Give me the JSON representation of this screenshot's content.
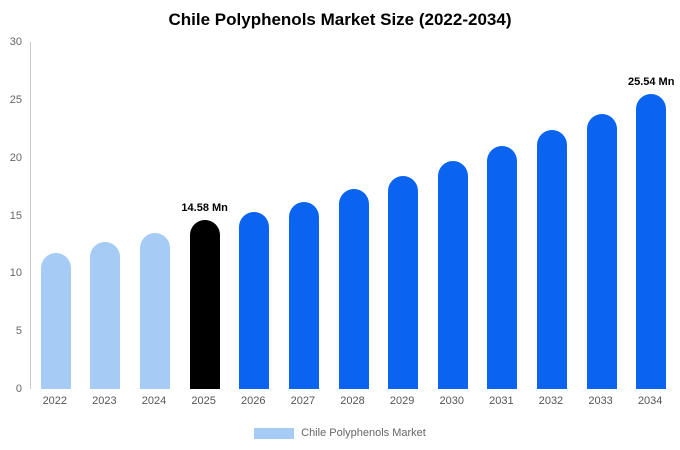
{
  "chart_data": {
    "type": "bar",
    "title": "Chile Polyphenols Market Size (2022-2034)",
    "categories": [
      "2022",
      "2023",
      "2024",
      "2025",
      "2026",
      "2027",
      "2028",
      "2029",
      "2030",
      "2031",
      "2032",
      "2033",
      "2034"
    ],
    "values": [
      11.8,
      12.7,
      13.5,
      14.58,
      15.3,
      16.2,
      17.3,
      18.4,
      19.7,
      21.0,
      22.4,
      23.8,
      25.54
    ],
    "bar_colors": [
      "#a6cbf5",
      "#a6cbf5",
      "#a6cbf5",
      "#000000",
      "#0a64f0",
      "#0a64f0",
      "#0a64f0",
      "#0a64f0",
      "#0a64f0",
      "#0a64f0",
      "#0a64f0",
      "#0a64f0",
      "#0a64f0"
    ],
    "annotations": [
      {
        "index": 3,
        "text": "14.58 Mn"
      },
      {
        "index": 12,
        "text": "25.54 Mn"
      }
    ],
    "xlabel": "",
    "ylabel": "",
    "ylim": [
      0,
      30
    ],
    "yticks": [
      0,
      5,
      10,
      15,
      20,
      25,
      30
    ],
    "grid": false,
    "legend_position": "bottom",
    "legend_label": "Chile Polyphenols Market",
    "legend_color": "#a6cbf5",
    "colors": {
      "historical": "#a6cbf5",
      "highlight": "#000000",
      "forecast": "#0a64f0",
      "axis": "#cccccc",
      "tick_text": "#666666"
    }
  }
}
